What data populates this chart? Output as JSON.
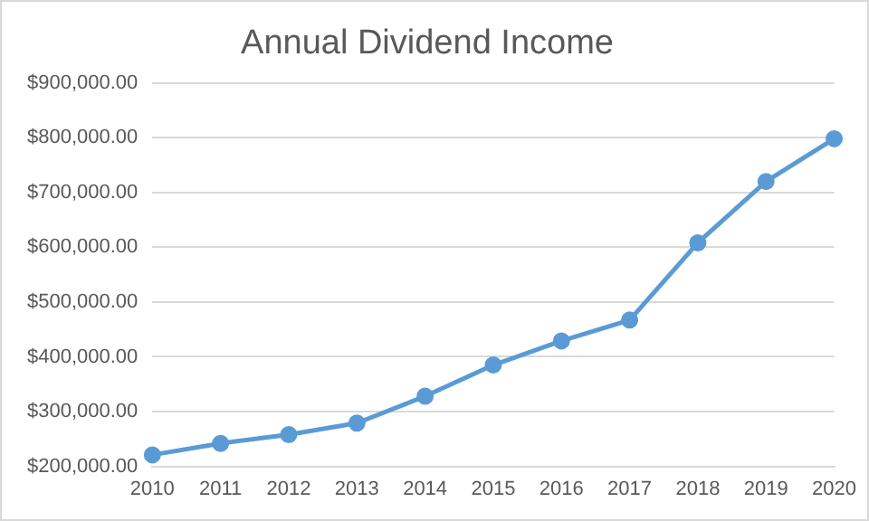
{
  "chart_data": {
    "type": "line",
    "title": "Annual Dividend Income",
    "categories": [
      "2010",
      "2011",
      "2012",
      "2013",
      "2014",
      "2015",
      "2016",
      "2017",
      "2018",
      "2019",
      "2020"
    ],
    "series": [
      {
        "color": "#5b9bd5",
        "values": [
          221000,
          242000,
          258000,
          279000,
          328000,
          385000,
          429000,
          467000,
          608000,
          720000,
          798000
        ]
      }
    ],
    "ylim": [
      200000,
      900000
    ],
    "yticks": [
      {
        "value": 200000,
        "label": "$200,000.00"
      },
      {
        "value": 300000,
        "label": "$300,000.00"
      },
      {
        "value": 400000,
        "label": "$400,000.00"
      },
      {
        "value": 500000,
        "label": "$500,000.00"
      },
      {
        "value": 600000,
        "label": "$600,000.00"
      },
      {
        "value": 700000,
        "label": "$700,000.00"
      },
      {
        "value": 800000,
        "label": "$800,000.00"
      },
      {
        "value": 900000,
        "label": "$900,000.00"
      }
    ],
    "grid": "y",
    "legend": false,
    "marker": "circle",
    "line_style": "solid"
  }
}
